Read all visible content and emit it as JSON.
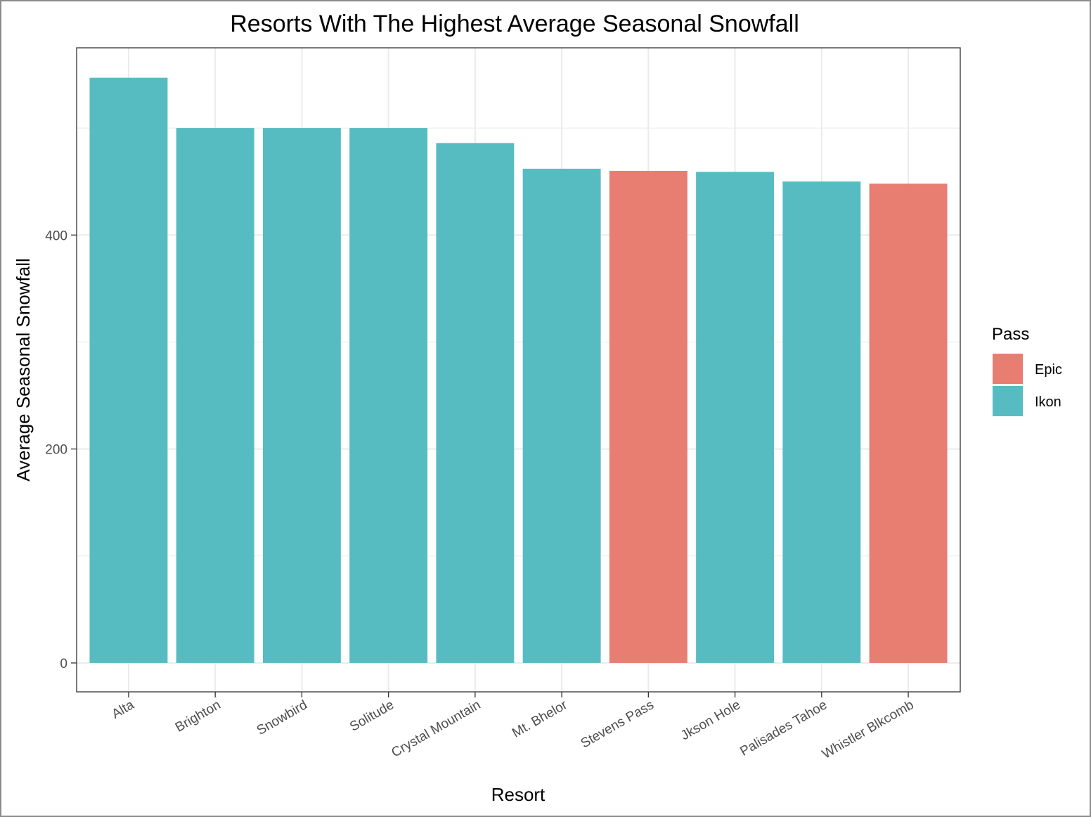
{
  "chart_data": {
    "type": "bar",
    "title": "Resorts With The Highest Average Seasonal Snowfall",
    "xlabel": "Resort",
    "ylabel": "Average Seasonal Snowfall",
    "categories": [
      "Alta",
      "Brighton",
      "Snowbird",
      "Solitude",
      "Crystal Mountain",
      "Mt. Bhelor",
      "Stevens Pass",
      "Jkson Hole",
      "Palisades Tahoe",
      "Whistler Blkcomb"
    ],
    "values": [
      547,
      500,
      500,
      500,
      486,
      462,
      460,
      459,
      450,
      448
    ],
    "pass": [
      "Ikon",
      "Ikon",
      "Ikon",
      "Ikon",
      "Ikon",
      "Ikon",
      "Epic",
      "Ikon",
      "Ikon",
      "Epic"
    ],
    "ylim": [
      -27,
      575
    ],
    "yticks": [
      0,
      200,
      400
    ],
    "ytick_labels": [
      "0",
      "200",
      "400"
    ],
    "grid": true,
    "legend": {
      "title": "Pass",
      "position": "right",
      "entries": [
        {
          "name": "Epic",
          "color": "#E87D72"
        },
        {
          "name": "Ikon",
          "color": "#56BCC2"
        }
      ]
    }
  }
}
